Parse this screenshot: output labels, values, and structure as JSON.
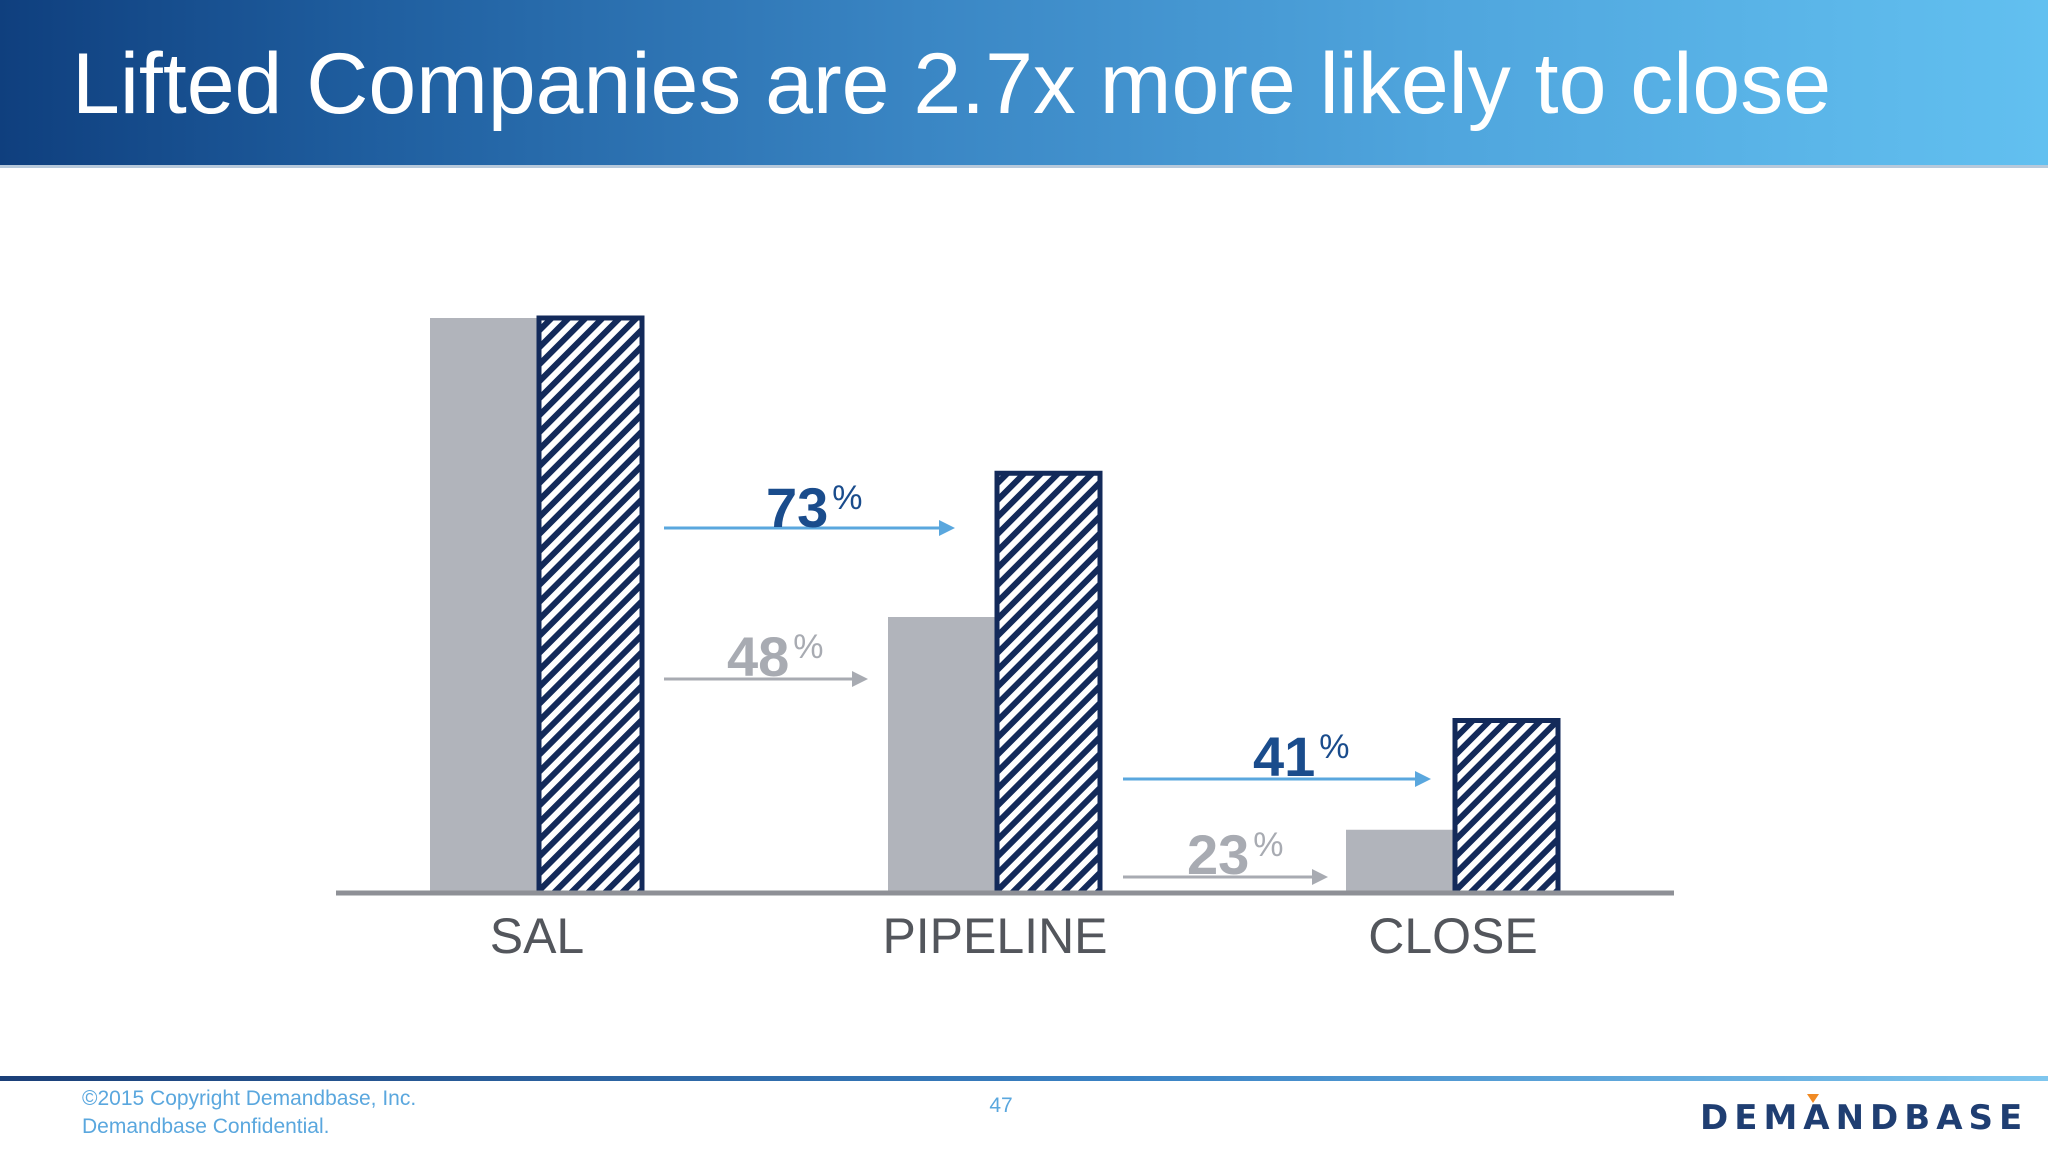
{
  "header": {
    "title": "Lifted Companies are 2.7x more likely to close"
  },
  "chart_data": {
    "type": "bar",
    "title": "",
    "xlabel": "",
    "ylabel": "",
    "categories": [
      "SAL",
      "PIPELINE",
      "CLOSE"
    ],
    "ylim": [
      0,
      100
    ],
    "series": [
      {
        "values": [
          100,
          48,
          11
        ],
        "color": "#b1b4bb",
        "pattern": "solid"
      },
      {
        "values": [
          100,
          73,
          30
        ],
        "color": "#132a5a",
        "pattern": "diagonal-stripes"
      }
    ],
    "conversions": [
      {
        "from": "SAL",
        "to": "PIPELINE",
        "series_index": 1,
        "value": "73",
        "unit": "%",
        "color": "#1a4c8c",
        "arrow_color": "#5aa7de"
      },
      {
        "from": "SAL",
        "to": "PIPELINE",
        "series_index": 0,
        "value": "48",
        "unit": "%",
        "color": "#a8abb2",
        "arrow_color": "#a8abb2"
      },
      {
        "from": "PIPELINE",
        "to": "CLOSE",
        "series_index": 1,
        "value": "41",
        "unit": "%",
        "color": "#1a4c8c",
        "arrow_color": "#5aa7de"
      },
      {
        "from": "PIPELINE",
        "to": "CLOSE",
        "series_index": 0,
        "value": "23",
        "unit": "%",
        "color": "#a8abb2",
        "arrow_color": "#a8abb2"
      }
    ],
    "legend": "none",
    "grid": false
  },
  "footer": {
    "copyright_line1": "©2015 Copyright Demandbase, Inc.",
    "copyright_line2": "Demandbase Confidential.",
    "page_number": "47",
    "logo_text": "DEMANDBASE"
  }
}
